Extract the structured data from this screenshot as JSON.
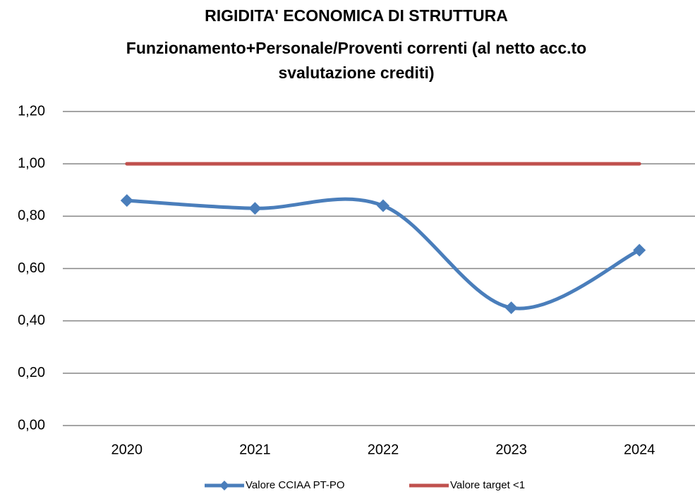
{
  "chart_data": {
    "type": "line",
    "title": "RIGIDITA' ECONOMICA DI STRUTTURA",
    "subtitle": [
      "Funzionamento+Personale/Proventi correnti (al netto acc.to",
      "svalutazione crediti)"
    ],
    "categories": [
      "2020",
      "2021",
      "2022",
      "2023",
      "2024"
    ],
    "series": [
      {
        "name": "Valore CCIAA PT-PO",
        "color": "#4a7ebb",
        "smooth": true,
        "marker": "diamond",
        "values": [
          0.86,
          0.83,
          0.84,
          0.45,
          0.67
        ]
      },
      {
        "name": "Valore target <1",
        "color": "#c0504d",
        "smooth": false,
        "marker": "none",
        "values": [
          1,
          1,
          1,
          1,
          1
        ]
      }
    ],
    "ylim": [
      0,
      1.2
    ],
    "yticks": [
      {
        "value": 0,
        "label": "0,00"
      },
      {
        "value": 0.2,
        "label": "0,20"
      },
      {
        "value": 0.4,
        "label": "0,40"
      },
      {
        "value": 0.6,
        "label": "0,60"
      },
      {
        "value": 0.8,
        "label": "0,80"
      },
      {
        "value": 1,
        "label": "1,00"
      },
      {
        "value": 1.2,
        "label": "1,20"
      }
    ],
    "grid": true,
    "legend": "bottom"
  }
}
